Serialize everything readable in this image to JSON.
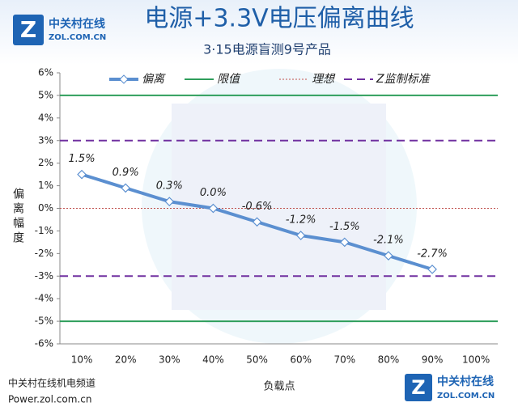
{
  "chart_data": {
    "type": "line",
    "title": "电源+3.3V电压偏离曲线",
    "subtitle": "3·15电源盲测9号产品",
    "x_label": "负载点",
    "y_label": "偏离幅度",
    "categories": [
      "10%",
      "20%",
      "30%",
      "40%",
      "50%",
      "60%",
      "70%",
      "80%",
      "90%",
      "100%"
    ],
    "series": [
      {
        "name": "偏离",
        "color": "#5b8fd0",
        "marker": "diamond",
        "values": [
          1.5,
          0.9,
          0.3,
          0.0,
          -0.6,
          -1.2,
          -1.5,
          -2.1,
          -2.7,
          null
        ],
        "value_labels": [
          "1.5%",
          "0.9%",
          "0.3%",
          "0.0%",
          "-0.6%",
          "-1.2%",
          "-1.5%",
          "-2.1%",
          "-2.7%",
          null
        ]
      }
    ],
    "reference_lines": [
      {
        "name": "限值",
        "color": "#2e9e5b",
        "dash": "solid",
        "levels": [
          5,
          -5
        ]
      },
      {
        "name": "理想",
        "color": "#c0504d",
        "dash": "dotted",
        "levels": [
          0
        ]
      },
      {
        "name": "Z监制标准",
        "color": "#7030a0",
        "dash": "dashed",
        "levels": [
          3,
          -3
        ]
      }
    ],
    "ylim": [
      -6,
      6
    ],
    "yticks": [
      {
        "value": -6,
        "label": "-6%"
      },
      {
        "value": -5,
        "label": "-5%"
      },
      {
        "value": -4,
        "label": "-4%"
      },
      {
        "value": -3,
        "label": "-3%"
      },
      {
        "value": -2,
        "label": "-2%"
      },
      {
        "value": -1,
        "label": "-1%"
      },
      {
        "value": 0,
        "label": "0%"
      },
      {
        "value": 1,
        "label": "1%"
      },
      {
        "value": 2,
        "label": "2%"
      },
      {
        "value": 3,
        "label": "3%"
      },
      {
        "value": 4,
        "label": "4%"
      },
      {
        "value": 5,
        "label": "5%"
      },
      {
        "value": 6,
        "label": "6%"
      }
    ],
    "legend": "top"
  },
  "branding": {
    "logo_name": "中关村在线",
    "logo_domain": "ZOL.COM.CN",
    "footer": [
      "中关村在线机电频道",
      "Power.zol.com.cn"
    ]
  }
}
